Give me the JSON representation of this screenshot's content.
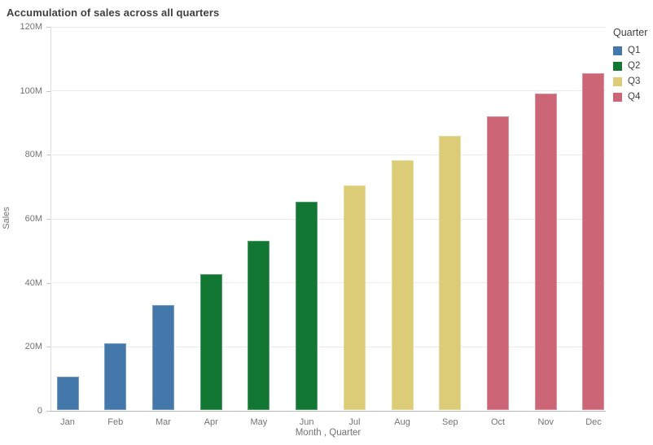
{
  "title": "Accumulation of sales across all quarters",
  "legend": {
    "title": "Quarter",
    "position": "right",
    "items": [
      {
        "label": "Q1",
        "color": "#4477aa"
      },
      {
        "label": "Q2",
        "color": "#117733"
      },
      {
        "label": "Q3",
        "color": "#ddcc77"
      },
      {
        "label": "Q4",
        "color": "#cc6677"
      }
    ]
  },
  "chart_data": {
    "type": "bar",
    "title": "Accumulation of sales across all quarters",
    "xlabel": "Month , Quarter",
    "ylabel": "Sales",
    "y_unit": "M",
    "ylim": [
      0,
      120
    ],
    "grid": true,
    "legend_position": "right",
    "y_tick_labels": [
      "0",
      "20M",
      "40M",
      "60M",
      "80M",
      "100M",
      "120M"
    ],
    "y_tick_values": [
      0,
      20,
      40,
      60,
      80,
      100,
      120
    ],
    "categories": [
      "Jan",
      "Feb",
      "Mar",
      "Apr",
      "May",
      "Jun",
      "Jul",
      "Aug",
      "Sep",
      "Oct",
      "Nov",
      "Dec"
    ],
    "series": [
      {
        "name": "Q1",
        "color": "#4477aa",
        "months": [
          "Jan",
          "Feb",
          "Mar"
        ],
        "values": [
          10.4,
          20.8,
          32.8
        ]
      },
      {
        "name": "Q2",
        "color": "#117733",
        "months": [
          "Apr",
          "May",
          "Jun"
        ],
        "values": [
          42.5,
          52.9,
          65.0
        ]
      },
      {
        "name": "Q3",
        "color": "#ddcc77",
        "months": [
          "Jul",
          "Aug",
          "Sep"
        ],
        "values": [
          70.3,
          78.0,
          85.8
        ]
      },
      {
        "name": "Q4",
        "color": "#cc6677",
        "months": [
          "Oct",
          "Nov",
          "Dec"
        ],
        "values": [
          91.8,
          99.0,
          105.3
        ]
      }
    ]
  }
}
